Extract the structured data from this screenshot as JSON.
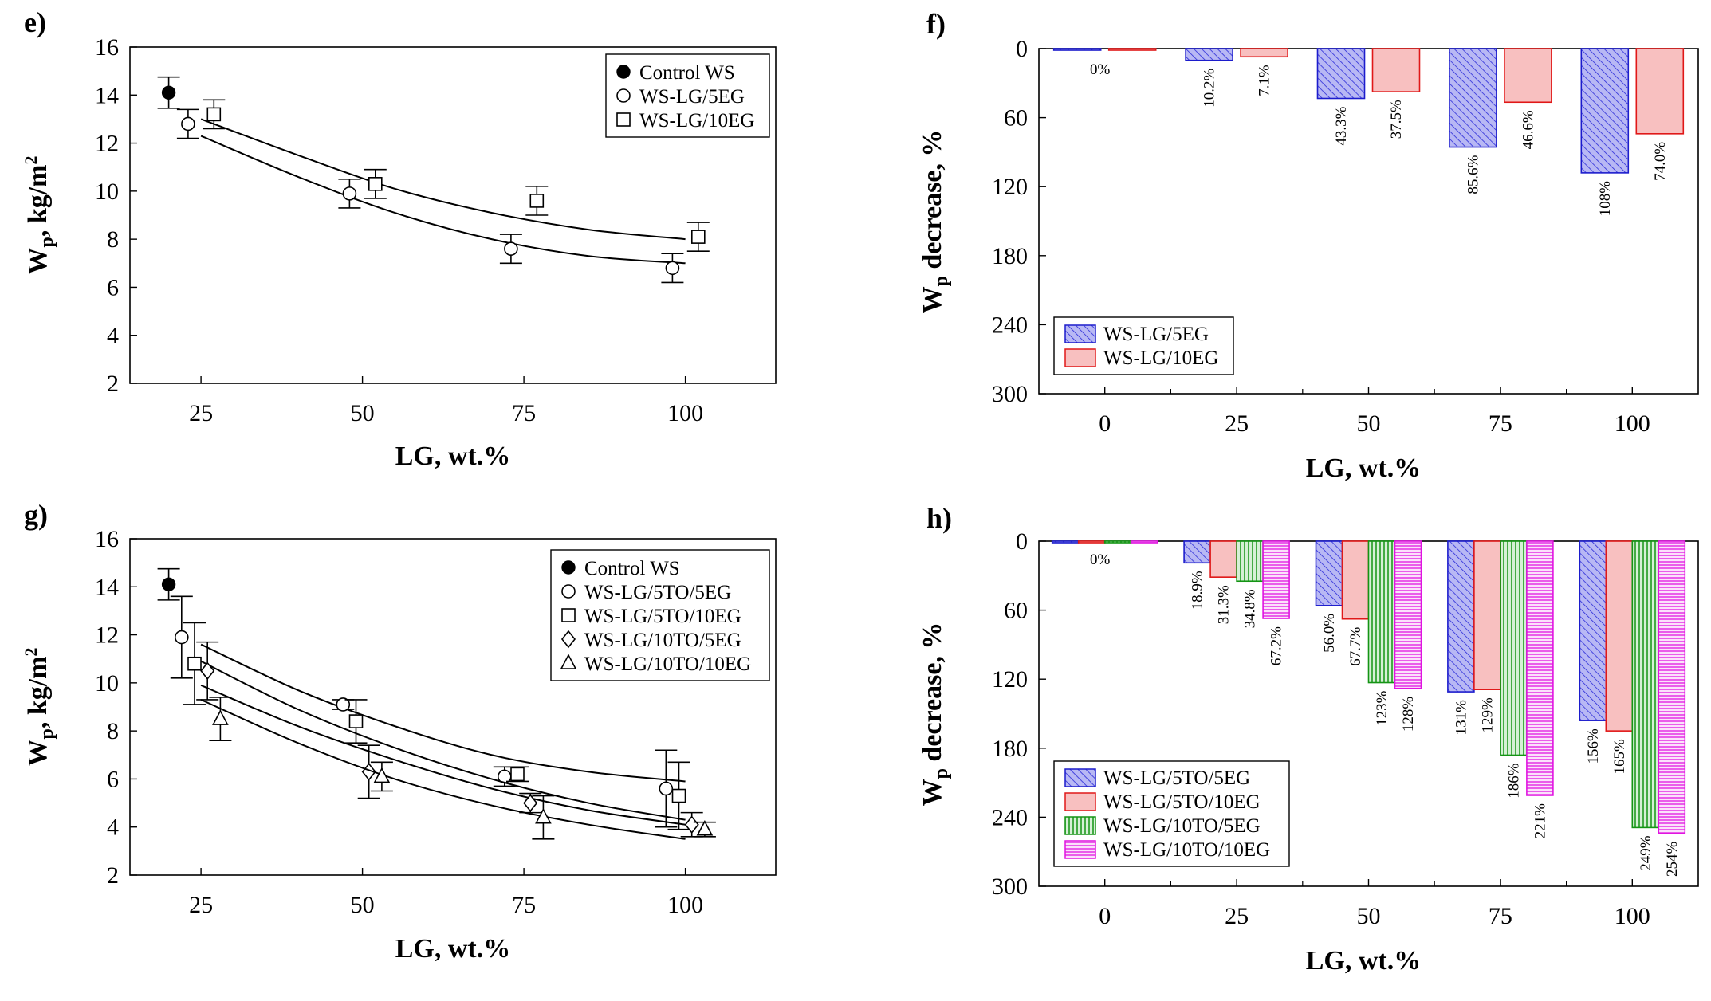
{
  "chart_data": [
    {
      "panel": "e)",
      "type": "scatter",
      "xlabel": "LG, wt.%",
      "ylabel": "Wp, kg/m2",
      "xlim": [
        14,
        114
      ],
      "ylim": [
        2,
        16
      ],
      "xticks": [
        "25",
        "50",
        "75",
        "100"
      ],
      "yticks": [
        "2",
        "4",
        "6",
        "8",
        "10",
        "12",
        "14",
        "16"
      ],
      "legend_position": "top-right",
      "series": [
        {
          "name": "Control WS",
          "marker": "filled-circle",
          "points": [
            {
              "x": 20,
              "y": 14.1,
              "err": 0.65
            }
          ]
        },
        {
          "name": "WS-LG/5EG",
          "marker": "circle",
          "points": [
            {
              "x": 23,
              "y": 12.8,
              "err": 0.6
            },
            {
              "x": 48,
              "y": 9.9,
              "err": 0.6
            },
            {
              "x": 73,
              "y": 7.6,
              "err": 0.6
            },
            {
              "x": 98,
              "y": 6.8,
              "err": 0.6
            }
          ],
          "fit": [
            [
              25,
              12.3
            ],
            [
              40,
              10.6
            ],
            [
              55,
              9.1
            ],
            [
              70,
              8.0
            ],
            [
              85,
              7.3
            ],
            [
              100,
              7.0
            ]
          ]
        },
        {
          "name": "WS-LG/10EG",
          "marker": "square",
          "points": [
            {
              "x": 27,
              "y": 13.2,
              "err": 0.6
            },
            {
              "x": 52,
              "y": 10.3,
              "err": 0.6
            },
            {
              "x": 77,
              "y": 9.6,
              "err": 0.6
            },
            {
              "x": 102,
              "y": 8.1,
              "err": 0.6
            }
          ],
          "fit": [
            [
              25,
              13.0
            ],
            [
              40,
              11.5
            ],
            [
              55,
              10.1
            ],
            [
              70,
              9.1
            ],
            [
              85,
              8.4
            ],
            [
              100,
              8.0
            ]
          ]
        }
      ]
    },
    {
      "panel": "f)",
      "type": "bar",
      "xlabel": "LG, wt.%",
      "ylabel": "Wp decrease, %",
      "ylim": [
        0,
        300
      ],
      "inverted_y": true,
      "categories": [
        "0",
        "25",
        "50",
        "75",
        "100"
      ],
      "yticks": [
        "0",
        "60",
        "120",
        "180",
        "240",
        "300"
      ],
      "legend_position": "bottom-left",
      "series": [
        {
          "name": "WS-LG/5EG",
          "fill": "#b8b8f4",
          "stroke": "#1c1ccc",
          "hatch": "diag",
          "values": [
            0,
            10.2,
            43.3,
            85.6,
            108
          ],
          "labels": [
            "0%",
            "10.2%",
            "43.3%",
            "85.6%",
            "108%"
          ]
        },
        {
          "name": "WS-LG/10EG",
          "fill": "#f8c0c0",
          "stroke": "#e01818",
          "hatch": "none",
          "values": [
            0,
            7.1,
            37.5,
            46.6,
            74.0
          ],
          "labels": [
            "",
            "7.1%",
            "37.5%",
            "46.6%",
            "74.0%"
          ]
        }
      ]
    },
    {
      "panel": "g)",
      "type": "scatter",
      "xlabel": "LG, wt.%",
      "ylabel": "Wp, kg/m2",
      "xlim": [
        14,
        114
      ],
      "ylim": [
        2,
        16
      ],
      "xticks": [
        "25",
        "50",
        "75",
        "100"
      ],
      "yticks": [
        "2",
        "4",
        "6",
        "8",
        "10",
        "12",
        "14",
        "16"
      ],
      "legend_position": "top-right",
      "series": [
        {
          "name": "Control WS",
          "marker": "filled-circle",
          "points": [
            {
              "x": 20,
              "y": 14.1,
              "err": 0.65
            }
          ]
        },
        {
          "name": "WS-LG/5TO/5EG",
          "marker": "circle",
          "points": [
            {
              "x": 22,
              "y": 11.9,
              "err": 1.7
            },
            {
              "x": 47,
              "y": 9.1,
              "err": 0.2
            },
            {
              "x": 72,
              "y": 6.1,
              "err": 0.4
            },
            {
              "x": 97,
              "y": 5.6,
              "err": 1.6
            }
          ],
          "fit": [
            [
              25,
              11.6
            ],
            [
              40,
              9.7
            ],
            [
              55,
              8.2
            ],
            [
              70,
              7.0
            ],
            [
              85,
              6.3
            ],
            [
              100,
              5.9
            ]
          ]
        },
        {
          "name": "WS-LG/5TO/10EG",
          "marker": "square",
          "points": [
            {
              "x": 24,
              "y": 10.8,
              "err": 1.7
            },
            {
              "x": 49,
              "y": 8.4,
              "err": 0.9
            },
            {
              "x": 74,
              "y": 6.2,
              "err": 0.3
            },
            {
              "x": 99,
              "y": 5.3,
              "err": 1.4
            }
          ],
          "fit": [
            [
              25,
              10.9
            ],
            [
              40,
              8.9
            ],
            [
              55,
              7.3
            ],
            [
              70,
              6.0
            ],
            [
              85,
              5.0
            ],
            [
              100,
              4.3
            ]
          ]
        },
        {
          "name": "WS-LG/10TO/5EG",
          "marker": "diamond",
          "points": [
            {
              "x": 26,
              "y": 10.5,
              "err": 1.2
            },
            {
              "x": 51,
              "y": 6.3,
              "err": 1.1
            },
            {
              "x": 76,
              "y": 5.0,
              "err": 0.4
            },
            {
              "x": 101,
              "y": 4.1,
              "err": 0.5
            }
          ],
          "fit": [
            [
              25,
              9.9
            ],
            [
              40,
              8.2
            ],
            [
              55,
              6.8
            ],
            [
              70,
              5.6
            ],
            [
              85,
              4.7
            ],
            [
              100,
              4.1
            ]
          ]
        },
        {
          "name": "WS-LG/10TO/10EG",
          "marker": "triangle",
          "points": [
            {
              "x": 28,
              "y": 8.5,
              "err": 0.9
            },
            {
              "x": 53,
              "y": 6.1,
              "err": 0.6
            },
            {
              "x": 78,
              "y": 4.4,
              "err": 0.9
            },
            {
              "x": 103,
              "y": 3.9,
              "err": 0.3
            }
          ],
          "fit": [
            [
              25,
              9.3
            ],
            [
              40,
              7.5
            ],
            [
              55,
              6.0
            ],
            [
              70,
              4.9
            ],
            [
              85,
              4.1
            ],
            [
              100,
              3.5
            ]
          ]
        }
      ]
    },
    {
      "panel": "h)",
      "type": "bar",
      "xlabel": "LG, wt.%",
      "ylabel": "Wp decrease, %",
      "ylim": [
        0,
        300
      ],
      "inverted_y": true,
      "categories": [
        "0",
        "25",
        "50",
        "75",
        "100"
      ],
      "yticks": [
        "0",
        "60",
        "120",
        "180",
        "240",
        "300"
      ],
      "legend_position": "bottom-left",
      "series": [
        {
          "name": "WS-LG/5TO/5EG",
          "fill": "#b8b8f4",
          "stroke": "#1c1ccc",
          "hatch": "diag",
          "values": [
            0,
            18.9,
            56.0,
            131,
            156
          ],
          "labels": [
            "0%",
            "18.9%",
            "56.0%",
            "131%",
            "156%"
          ]
        },
        {
          "name": "WS-LG/5TO/10EG",
          "fill": "#f8c0c0",
          "stroke": "#e01818",
          "hatch": "none",
          "values": [
            0,
            31.3,
            67.7,
            129,
            165
          ],
          "labels": [
            "",
            "31.3%",
            "67.7%",
            "129%",
            "165%"
          ]
        },
        {
          "name": "WS-LG/10TO/5EG",
          "fill": "#d6f0d6",
          "stroke": "#149414",
          "hatch": "vertical",
          "values": [
            0,
            34.8,
            123,
            186,
            249
          ],
          "labels": [
            "",
            "34.8%",
            "123%",
            "186%",
            "249%"
          ]
        },
        {
          "name": "WS-LG/10TO/10EG",
          "fill": "#fbe0fb",
          "stroke": "#e014e0",
          "hatch": "horizontal",
          "values": [
            0,
            67.2,
            128,
            221,
            254
          ],
          "labels": [
            "",
            "67.2%",
            "128%",
            "221%",
            "254%"
          ]
        }
      ]
    }
  ]
}
